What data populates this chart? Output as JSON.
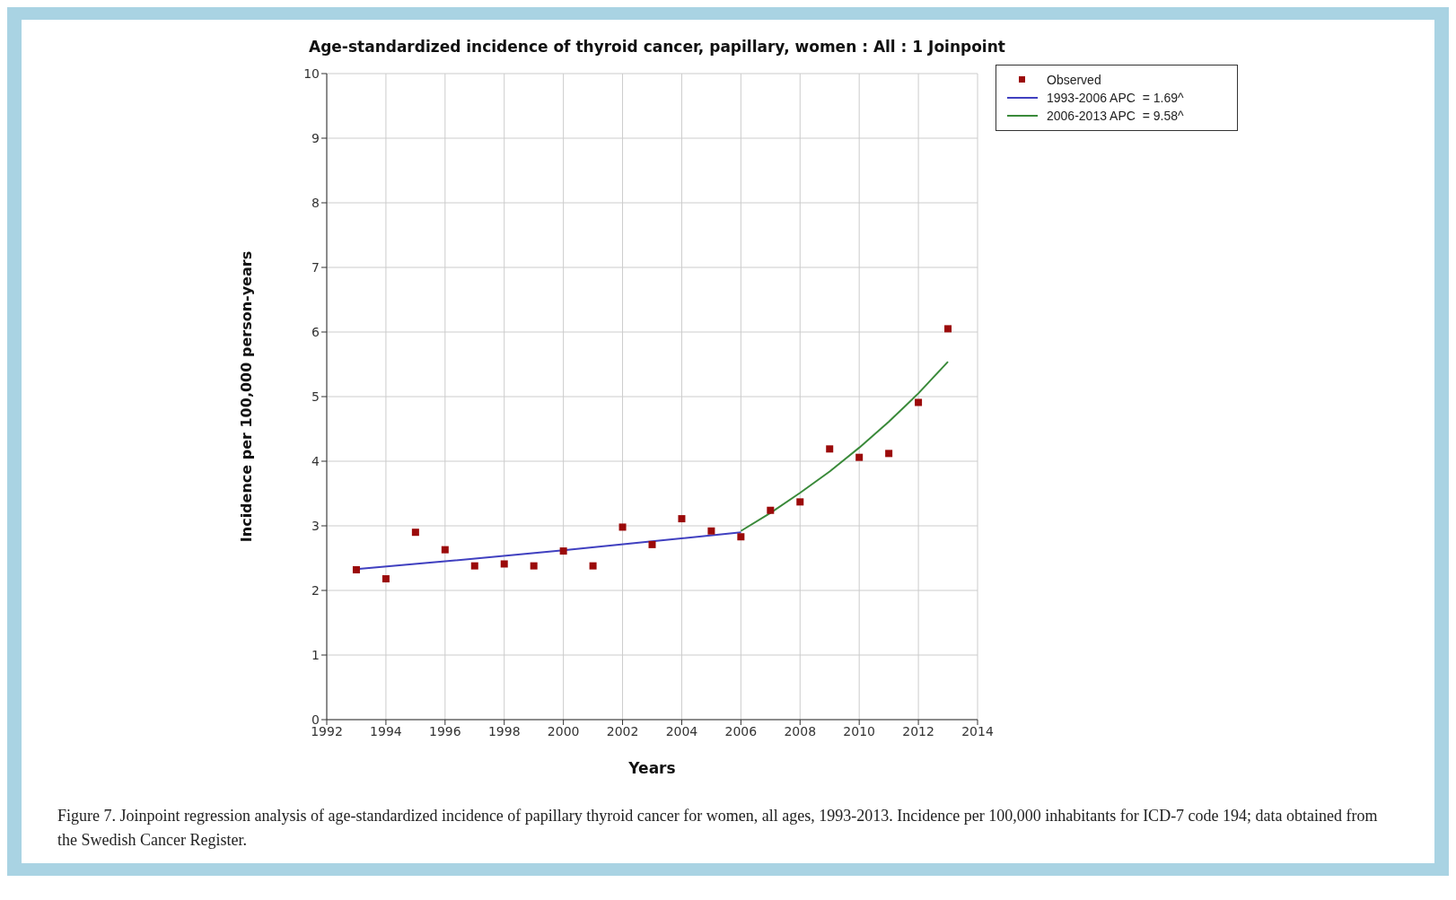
{
  "chart_data": {
    "type": "scatter",
    "title": "Age-standardized incidence of thyroid cancer, papillary, women : All : 1 Joinpoint",
    "xlabel": "Years",
    "ylabel": "Incidence per 100,000 person-years",
    "x": [
      1993,
      1994,
      1995,
      1996,
      1997,
      1998,
      1999,
      2000,
      2001,
      2002,
      2003,
      2004,
      2005,
      2006,
      2007,
      2008,
      2009,
      2010,
      2011,
      2012,
      2013
    ],
    "series": [
      {
        "name": "Observed",
        "marker": "square",
        "color": "#9b0a0a",
        "values": [
          2.32,
          2.18,
          2.9,
          2.63,
          2.38,
          2.41,
          2.38,
          2.61,
          2.38,
          2.98,
          2.71,
          3.11,
          2.92,
          2.83,
          3.24,
          3.37,
          4.19,
          4.06,
          4.12,
          4.91,
          6.05
        ]
      },
      {
        "name": "1993-2006 APC  = 1.69^",
        "type": "line",
        "marker": "none",
        "color": "#4040c0",
        "x": [
          1993,
          1996,
          2000,
          2003,
          2006
        ],
        "values": [
          2.33,
          2.45,
          2.62,
          2.76,
          2.9
        ]
      },
      {
        "name": "2006-2013 APC  = 9.58^",
        "type": "line",
        "marker": "none",
        "color": "#3a8a3a",
        "x": [
          2006,
          2007,
          2008,
          2009,
          2010,
          2011,
          2012,
          2013
        ],
        "values": [
          2.92,
          3.2,
          3.51,
          3.84,
          4.21,
          4.61,
          5.05,
          5.54
        ]
      }
    ],
    "xlim": [
      1992,
      2014
    ],
    "xticks": [
      1992,
      1994,
      1996,
      1998,
      2000,
      2002,
      2004,
      2006,
      2008,
      2010,
      2012,
      2014
    ],
    "ylim": [
      0,
      10
    ],
    "yticks": [
      0,
      1,
      2,
      3,
      4,
      5,
      6,
      7,
      8,
      9,
      10
    ],
    "grid": true,
    "legend": "top right",
    "annotations": [
      "Figure 7. Joinpoint regression analysis of age-standardized incidence of papillary thyroid cancer for women, all ages, 1993-2013. Incidence per 100,000 inhabitants for ICD-7 code 194; data obtained from the Swedish Cancer Register."
    ]
  }
}
